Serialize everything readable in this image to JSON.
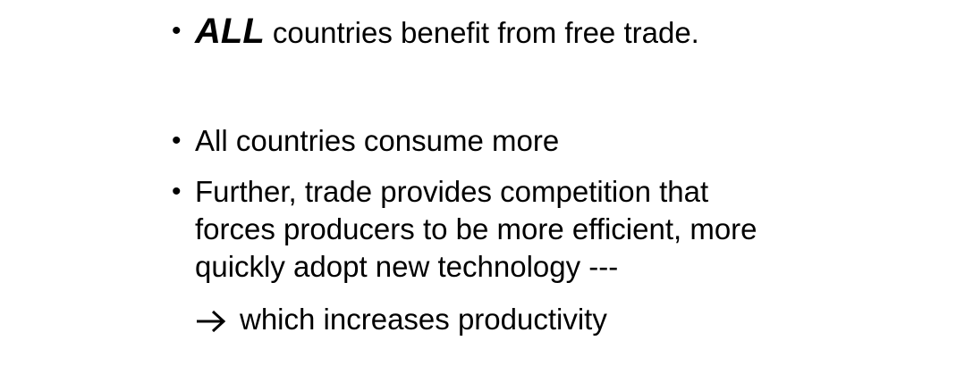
{
  "slide": {
    "bullets": [
      {
        "marker": "•",
        "emphasis": "ALL",
        "text": " countries benefit from free trade."
      },
      {
        "marker": "•",
        "text": "All countries consume more"
      },
      {
        "marker": "•",
        "lines": [
          "Further, trade provides competition that",
          "forces producers to be more efficient, more",
          "quickly adopt new technology ---"
        ]
      }
    ],
    "sub_point": {
      "icon": "arrow-right-icon",
      "text": "which increases productivity"
    }
  }
}
